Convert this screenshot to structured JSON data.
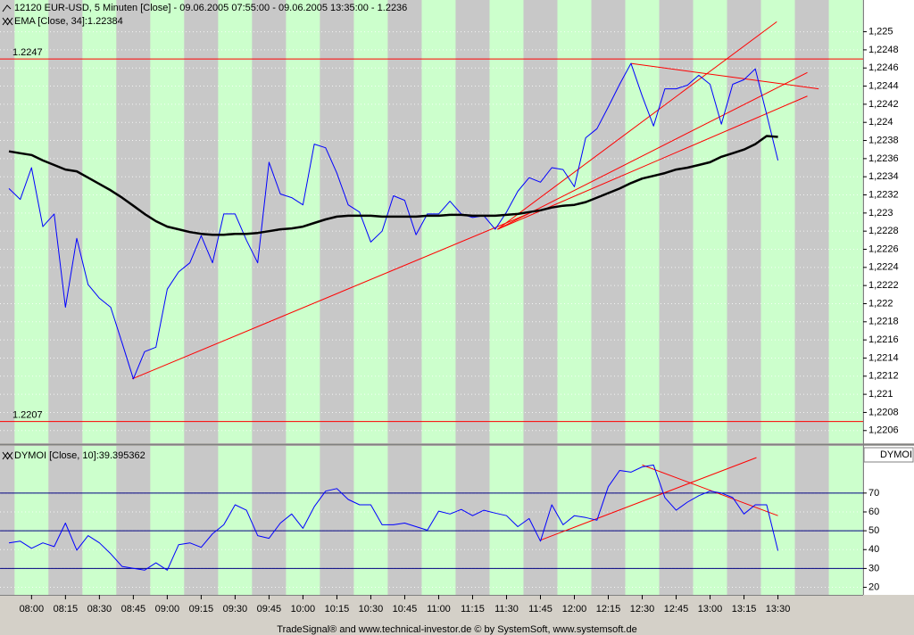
{
  "chart_data": [
    {
      "type": "line",
      "categories": [
        null,
        null,
        "08:00",
        null,
        null,
        "08:15",
        null,
        null,
        "08:30",
        null,
        null,
        "08:45",
        null,
        null,
        "09:00",
        null,
        null,
        "09:15",
        null,
        null,
        "09:30",
        null,
        null,
        "09:45",
        null,
        null,
        "10:00",
        null,
        null,
        "10:15",
        null,
        null,
        "10:30",
        null,
        null,
        "10:45",
        null,
        null,
        "11:00",
        null,
        null,
        "11:15",
        null,
        null,
        "11:30",
        null,
        null,
        "11:45",
        null,
        null,
        "12:00",
        null,
        null,
        "12:15",
        null,
        null,
        "12:30",
        null,
        null,
        "12:45",
        null,
        null,
        "13:00",
        null,
        null,
        "13:15",
        null,
        null,
        "13:30"
      ],
      "series": [
        {
          "name": "12120  EUR-USD, 5 Minuten [Close] - 09.06.2005 07:55:00 - 09.06.2005 13:35:00 - 1.2236",
          "color": "#0000ff",
          "values": [
            1.22327,
            1.22315,
            1.2235,
            1.22285,
            1.22299,
            1.22196,
            1.22272,
            1.22221,
            1.22206,
            1.22196,
            1.22157,
            1.22117,
            1.22147,
            1.22152,
            1.22216,
            1.22235,
            1.22245,
            1.22275,
            1.22245,
            1.22299,
            1.22299,
            1.2227,
            1.22245,
            1.22356,
            1.22321,
            1.22317,
            1.22309,
            1.22376,
            1.22372,
            1.22344,
            1.22309,
            1.22301,
            1.22268,
            1.2228,
            1.22319,
            1.22314,
            1.22276,
            1.22299,
            1.22299,
            1.22313,
            1.22299,
            1.22295,
            1.22297,
            1.22282,
            1.22301,
            1.22324,
            1.22339,
            1.22334,
            1.2235,
            1.22348,
            1.22329,
            1.22383,
            1.22393,
            1.22417,
            1.22442,
            1.22465,
            1.22429,
            1.22396,
            1.22437,
            1.22437,
            1.22441,
            1.22452,
            1.22442,
            1.22398,
            1.22442,
            1.22447,
            1.22459,
            1.22409,
            1.22358
          ]
        },
        {
          "name": "EMA [Close, 34]:1.22384",
          "color": "#000000",
          "values": [
            1.22368,
            1.22366,
            1.22364,
            1.22358,
            1.22353,
            1.22348,
            1.22346,
            1.22339,
            1.22332,
            1.22325,
            1.22317,
            1.22308,
            1.22299,
            1.22291,
            1.22285,
            1.22282,
            1.22279,
            1.22277,
            1.22276,
            1.22276,
            1.22277,
            1.22277,
            1.22278,
            1.2228,
            1.22282,
            1.22283,
            1.22285,
            1.22289,
            1.22293,
            1.22296,
            1.22297,
            1.22297,
            1.22297,
            1.22296,
            1.22296,
            1.22296,
            1.22296,
            1.22297,
            1.22297,
            1.22298,
            1.22298,
            1.22297,
            1.22297,
            1.22297,
            1.22298,
            1.22299,
            1.22301,
            1.22303,
            1.22306,
            1.22308,
            1.22309,
            1.22312,
            1.22317,
            1.22322,
            1.22327,
            1.22333,
            1.22338,
            1.22341,
            1.22344,
            1.22348,
            1.2235,
            1.22353,
            1.22356,
            1.22362,
            1.22366,
            1.2237,
            1.22376,
            1.22385,
            1.22384
          ]
        }
      ],
      "ylim": [
        1.22046,
        1.22535
      ],
      "yticks": [
        {
          "value": 1.225,
          "label": "1,225"
        },
        {
          "value": 1.2248,
          "label": "1,2248"
        },
        {
          "value": 1.2246,
          "label": "1,2246"
        },
        {
          "value": 1.2244,
          "label": "1,2244"
        },
        {
          "value": 1.2242,
          "label": "1,2242"
        },
        {
          "value": 1.224,
          "label": "1,224"
        },
        {
          "value": 1.2238,
          "label": "1,2238"
        },
        {
          "value": 1.2236,
          "label": "1,2236"
        },
        {
          "value": 1.2234,
          "label": "1,2234"
        },
        {
          "value": 1.2232,
          "label": "1,2232"
        },
        {
          "value": 1.223,
          "label": "1,223"
        },
        {
          "value": 1.2228,
          "label": "1,2228"
        },
        {
          "value": 1.2226,
          "label": "1,2226"
        },
        {
          "value": 1.2224,
          "label": "1,2224"
        },
        {
          "value": 1.2222,
          "label": "1,2222"
        },
        {
          "value": 1.222,
          "label": "1,222"
        },
        {
          "value": 1.2218,
          "label": "1,2218"
        },
        {
          "value": 1.2216,
          "label": "1,2216"
        },
        {
          "value": 1.2214,
          "label": "1,2214"
        },
        {
          "value": 1.2212,
          "label": "1,2212"
        },
        {
          "value": 1.221,
          "label": "1,221"
        },
        {
          "value": 1.2208,
          "label": "1,2208"
        },
        {
          "value": 1.2206,
          "label": "1,2206"
        }
      ],
      "levels": [
        1.2247,
        1.2207
      ],
      "level_color": "#ff0000",
      "trendlines": [
        {
          "x": [
            10.9,
            45.9
          ],
          "y": [
            1.22117,
            1.22299
          ]
        },
        {
          "x": [
            43.2,
            67.9
          ],
          "y": [
            1.22282,
            1.22511
          ]
        },
        {
          "x": [
            43.2,
            70.6
          ],
          "y": [
            1.22282,
            1.22455
          ]
        },
        {
          "x": [
            43.2,
            70.6
          ],
          "y": [
            1.22282,
            1.22429
          ]
        },
        {
          "x": [
            55,
            71.6
          ],
          "y": [
            1.22465,
            1.22437
          ]
        }
      ],
      "trend_color": "#ff0000",
      "grid": true
    },
    {
      "type": "line",
      "axis_title": "DYMOI",
      "series": [
        {
          "name": "DYMOI [Close, 10]:39.395362",
          "color": "#0000ff",
          "values": [
            43.6,
            44.5,
            40.7,
            43.6,
            41.6,
            54.1,
            39.7,
            47.4,
            43.6,
            37.8,
            31.1,
            30.1,
            29.1,
            33.0,
            29.1,
            42.6,
            43.6,
            41.2,
            48.4,
            53.2,
            63.8,
            60.9,
            47.4,
            46.0,
            54.1,
            58.9,
            51.3,
            62.8,
            71.0,
            72.4,
            66.6,
            63.8,
            63.8,
            53.2,
            53.2,
            54.1,
            52.2,
            50.3,
            60.4,
            58.9,
            61.3,
            58.0,
            60.9,
            59.4,
            58.0,
            52.2,
            56.5,
            44.5,
            63.8,
            53.2,
            58.0,
            57.0,
            55.6,
            73.4,
            82.0,
            81.1,
            83.9,
            84.9,
            67.6,
            60.9,
            65.2,
            68.6,
            71.0,
            70.0,
            67.6,
            58.9,
            63.8,
            63.8,
            39.4
          ]
        }
      ],
      "ylim": [
        16,
        95
      ],
      "yticks": [
        20,
        30,
        40,
        50,
        60,
        70
      ],
      "levels": [
        30,
        50,
        70
      ],
      "level_color": "#000080",
      "trendlines": [
        {
          "x": [
            47,
            66.1
          ],
          "y": [
            45.0,
            88.8
          ]
        },
        {
          "x": [
            56,
            68
          ],
          "y": [
            84.9,
            58.0
          ]
        }
      ],
      "trend_color": "#ff0000",
      "grid": true
    }
  ],
  "footer": "TradeSignal® and www.technical-investor.de © by SystemSoft, www.systemsoft.de"
}
